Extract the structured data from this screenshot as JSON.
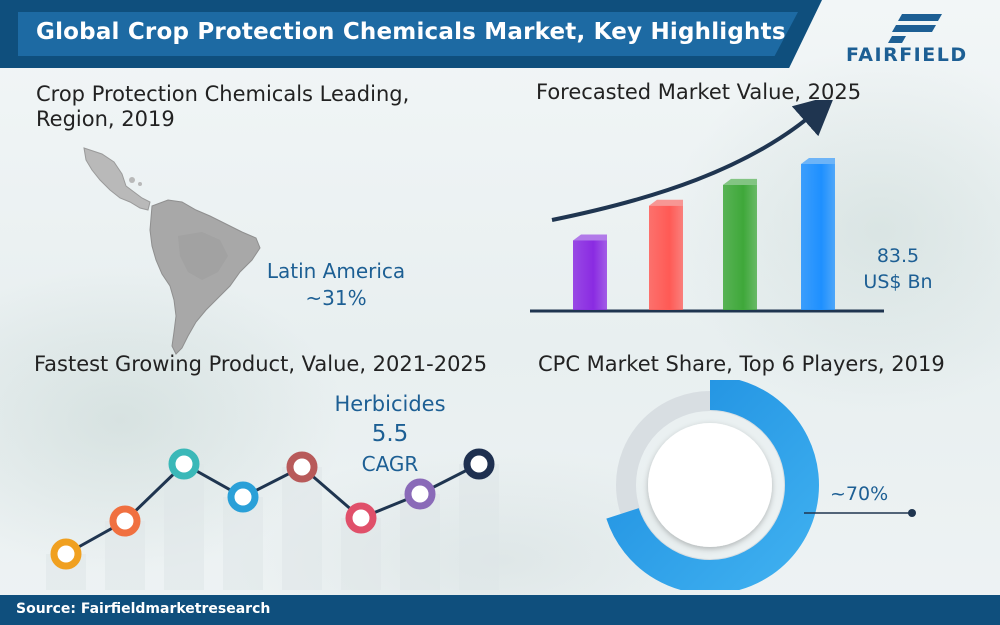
{
  "header": {
    "title": "Global Crop Protection Chemicals Market, Key Highlights",
    "logo_text": "FAIRFIELD"
  },
  "region_panel": {
    "title_line1": "Crop Protection Chemicals Leading,",
    "title_line2": "Region, 2019",
    "region_name": "Latin America",
    "share": "~31%"
  },
  "forecast_panel": {
    "title": "Forecasted Market Value, 2025",
    "value": "83.5",
    "unit": "US$ Bn"
  },
  "product_panel": {
    "title": "Fastest Growing Product, Value, 2021-2025",
    "product": "Herbicides",
    "value": "5.5",
    "metric": "CAGR"
  },
  "share_panel": {
    "title": "CPC Market Share, Top 6 Players, 2019",
    "share": "~70%"
  },
  "footer": {
    "source": "Source: Fairfieldmarketresearch"
  },
  "colors": {
    "brand_dark": "#0f4f7d",
    "brand": "#1d6aa3",
    "accent_text": "#1d5f94"
  },
  "chart_data": [
    {
      "type": "bar",
      "values": [
        1,
        1.5,
        1.8,
        2.1
      ],
      "colors": [
        "#8a2be2",
        "#ff5a55",
        "#3fa83a",
        "#1e90ff"
      ]
    },
    {
      "type": "line",
      "x": [
        1,
        2,
        3,
        4,
        5,
        6,
        7,
        8
      ],
      "values": [
        1.2,
        2.3,
        4.2,
        3.1,
        4.1,
        2.4,
        3.2,
        4.2
      ],
      "colors": [
        "#f0a020",
        "#f07040",
        "#3ab8b8",
        "#2aa0d8",
        "#b85a5a",
        "#e0506a",
        "#8a6ab8",
        "#1f3050"
      ]
    },
    {
      "type": "pie",
      "values": [
        70,
        30
      ]
    }
  ]
}
